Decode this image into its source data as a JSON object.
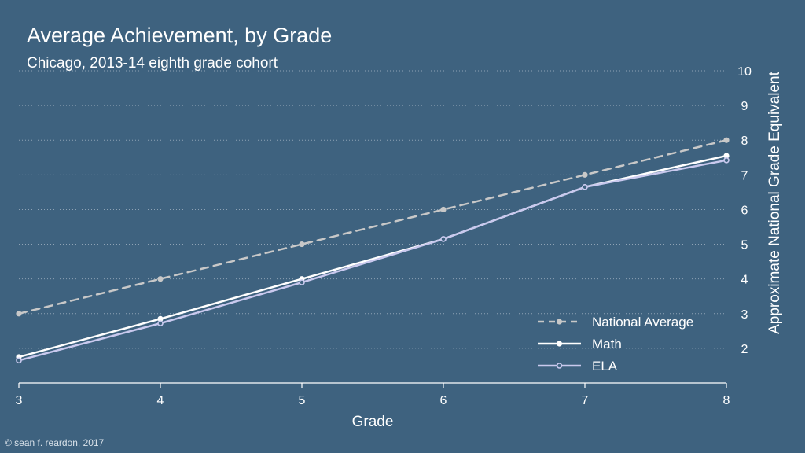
{
  "chart_data": {
    "type": "line",
    "title": "Average Achievement, by Grade",
    "subtitle": "Chicago, 2013-14 eighth grade cohort",
    "xlabel": "Grade",
    "ylabel": "Approximate National Grade Equivalent",
    "x": [
      3,
      4,
      5,
      6,
      7,
      8
    ],
    "xlim": [
      3,
      8
    ],
    "ylim": [
      1,
      10
    ],
    "yticks": [
      2,
      3,
      4,
      5,
      6,
      7,
      8,
      9,
      10
    ],
    "grid": "horizontal dotted",
    "y_axis_side": "right",
    "legend_position": "bottom-right",
    "series": [
      {
        "name": "National Average",
        "values": [
          3,
          4,
          5,
          6,
          7,
          8
        ],
        "color": "#c8c8c8",
        "style": "dashed",
        "marker": "filled-circle"
      },
      {
        "name": "Math",
        "values": [
          1.75,
          2.85,
          4.0,
          5.15,
          6.65,
          7.55
        ],
        "color": "#ffffff",
        "style": "solid",
        "marker": "filled-circle"
      },
      {
        "name": "ELA",
        "values": [
          1.65,
          2.72,
          3.9,
          5.15,
          6.65,
          7.42
        ],
        "color": "#c9c9ee",
        "style": "solid",
        "marker": "open-circle"
      }
    ]
  },
  "footer": {
    "credit": "© sean f. reardon, 2017"
  },
  "colors": {
    "background": "#3e627f",
    "grid": "#8fa3b5"
  }
}
